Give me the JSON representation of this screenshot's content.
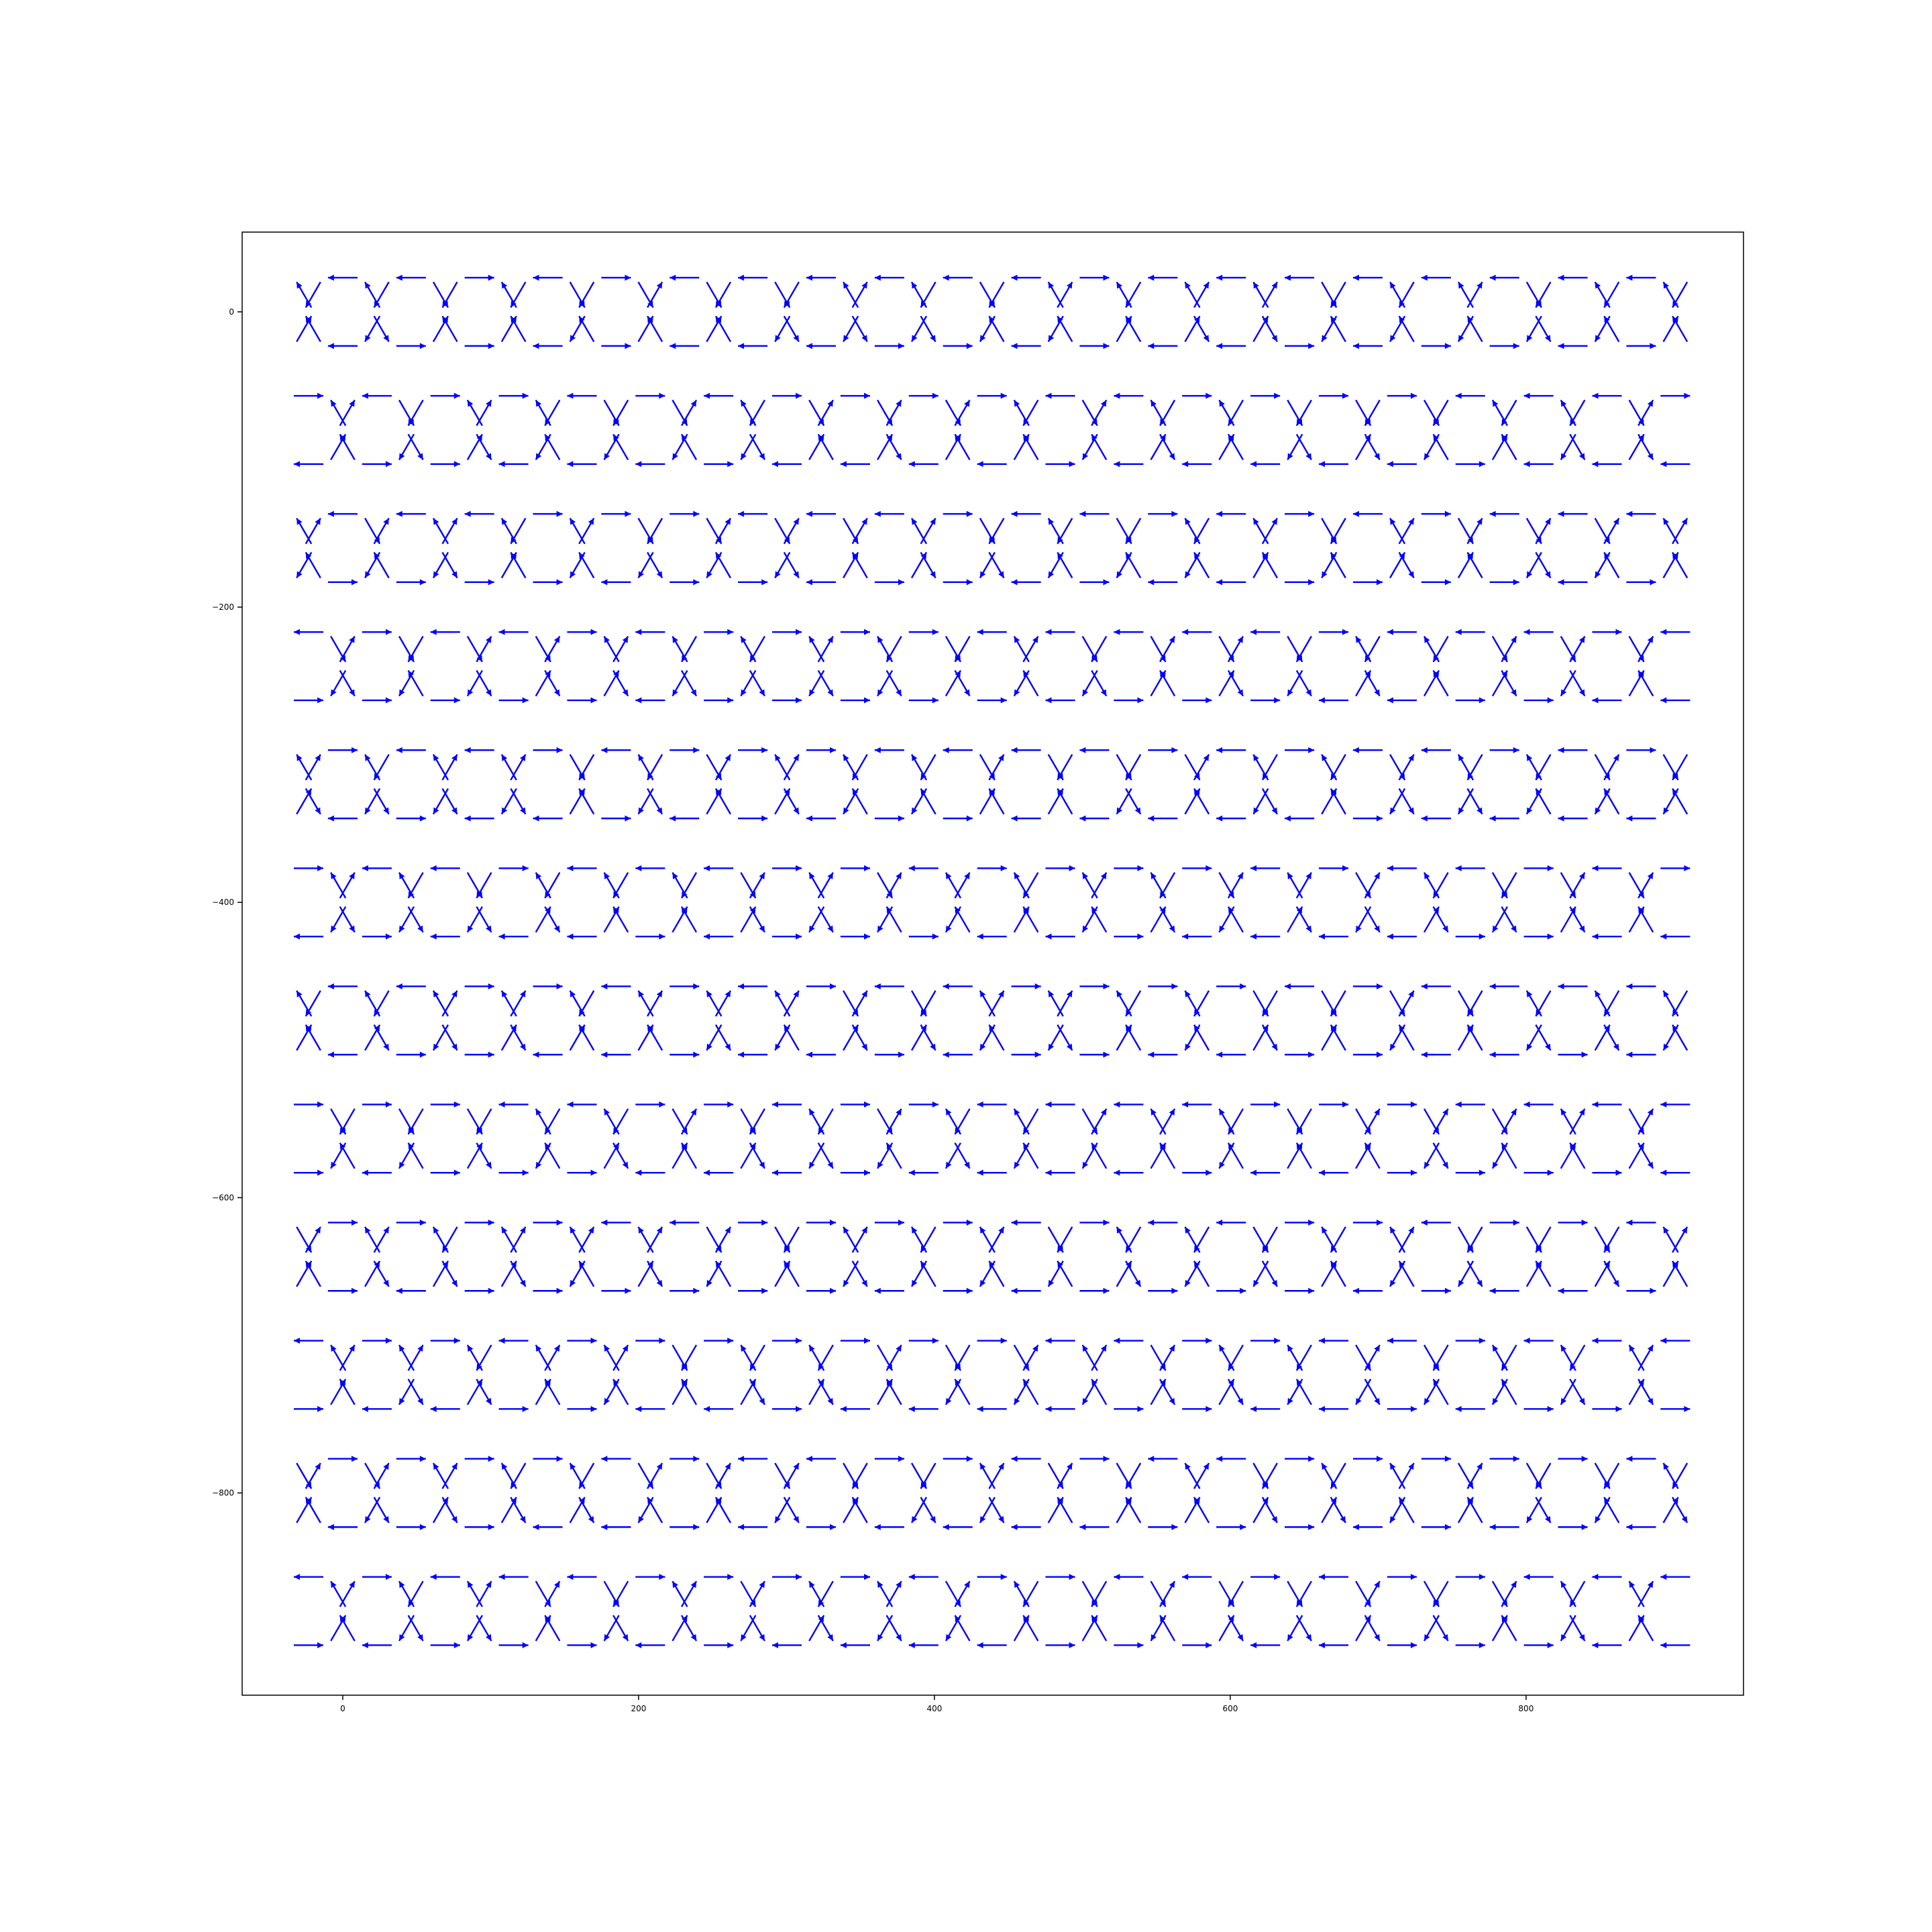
{
  "colors": {
    "arrow": "#0000ff",
    "axes": "#000000",
    "background": "#ffffff"
  },
  "chart_data": {
    "type": "quiver",
    "description_of_field": "spin-ice style arrows on a honeycomb (kagome) lattice; each arrow sits on a bond midpoint and points along the bond",
    "xlim": [
      -68,
      947
    ],
    "ylim": [
      -937,
      54
    ],
    "grid": false,
    "legend": "none",
    "xticks": [
      0,
      200,
      400,
      600,
      800
    ],
    "yticks": [
      0,
      -200,
      -400,
      -600,
      -800
    ],
    "xtick_labels": [
      "0",
      "200",
      "400",
      "600",
      "800"
    ],
    "ytick_labels": [
      "0",
      "−200",
      "−400",
      "−600",
      "−800"
    ],
    "lattice": {
      "hex_pitch_x": 46.2,
      "row_spacing_y": 80,
      "first_center_x": 0,
      "first_center_y": 0,
      "columns": 20,
      "rows": 12,
      "bond_length": 26.7,
      "arrow_length": 20
    }
  }
}
